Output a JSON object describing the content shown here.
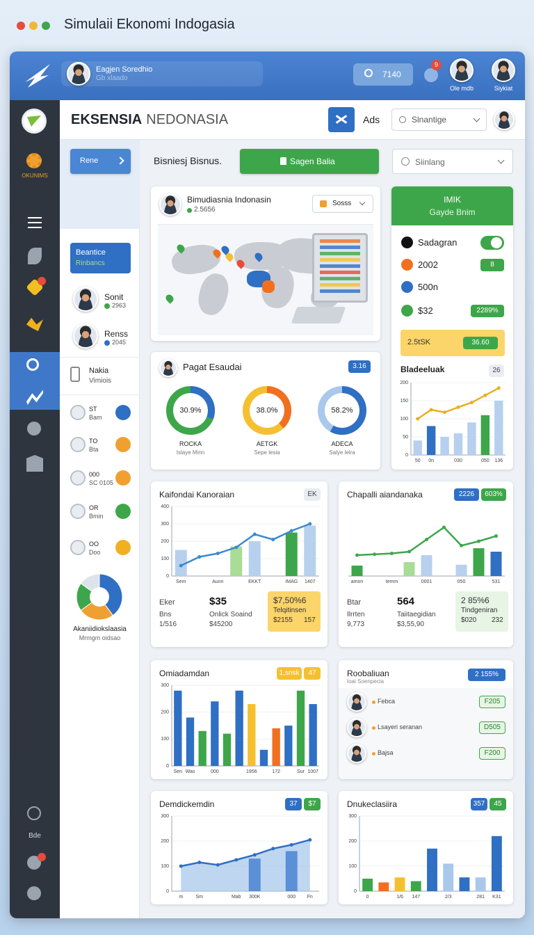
{
  "window": {
    "title": "Simulaii Ekonomi Indogasia"
  },
  "topbar": {
    "user": "Eagjen Soredhio",
    "user_sub": "Gb xlaado",
    "search": "7140",
    "notifications": "9",
    "users": [
      "Ole mdb",
      "Siykiat"
    ]
  },
  "sidebar": {
    "logo_label": "OKUNIMS",
    "bottom_label": "Bde"
  },
  "header": {
    "brand": "EKSENSIA",
    "brand_light": "NEDONASIA",
    "ads": "Ads",
    "search": "Slnantige"
  },
  "left_panel": {
    "button": "Rene",
    "active": {
      "title": "Beantice",
      "sub": "Rinbancs"
    },
    "people": [
      {
        "name": "Sonit",
        "value": "2963",
        "color": "#3ea64a"
      },
      {
        "name": "Renss",
        "value": "2045",
        "color": "#2f6fc4"
      }
    ],
    "item": {
      "name": "Nakia",
      "sub": "Vimiois"
    },
    "list": [
      {
        "title": "ST",
        "sub": "Bam",
        "color": "#2f6fc4"
      },
      {
        "title": "TO",
        "sub": "Bta",
        "color": "#f0a030"
      },
      {
        "title": "000",
        "sub": "SC 0105",
        "color": "#f0a030"
      },
      {
        "title": "OR",
        "sub": "Bmin",
        "color": "#3ea64a"
      },
      {
        "title": "OO",
        "sub": "Doo",
        "color": "#f0b020"
      }
    ],
    "pie": {
      "title": "Akaniidiokslaasia",
      "sub": "Mrmgm oidsao",
      "values": [
        40,
        25,
        20,
        15
      ],
      "colors": [
        "#2f6fc4",
        "#f0a030",
        "#3ea64a",
        "#dde3ea"
      ]
    }
  },
  "toolbar": {
    "label": "Bisniesj Bisnus.",
    "button": "Sagen Balia",
    "select": "Siinlang"
  },
  "map_card": {
    "title": "Bimudiasnia Indonasin",
    "sub": "2.5656",
    "button": "Sosss"
  },
  "status_card": {
    "title": "IMIK",
    "sub": "Gayde Bnim",
    "items": [
      {
        "label": "Sadagran",
        "color": "#111111"
      },
      {
        "label": "2002",
        "color": "#f07020",
        "badge": "8"
      },
      {
        "label": "500n",
        "color": "#2f6fc4"
      },
      {
        "label": "$32",
        "color": "#3ea64a",
        "badge": "2289%"
      }
    ],
    "highlight": {
      "text": "2.5tSK",
      "badge": "36.60"
    },
    "chart": {
      "title": "Bladeeluak",
      "badges": [
        "26"
      ],
      "ylim": [
        0,
        200
      ],
      "yticks": [
        0,
        50,
        100,
        150,
        200
      ],
      "categories": [
        "50",
        "0n",
        null,
        "030",
        null,
        "050",
        "136"
      ],
      "bars": {
        "values": [
          40,
          80,
          50,
          60,
          90,
          110,
          150
        ],
        "colors": [
          "#b7d0ee",
          "#2f6fc4",
          "#b7d0ee",
          "#b7d0ee",
          "#b7d0ee",
          "#3ea64a",
          "#b7d0ee"
        ]
      },
      "line": {
        "values": [
          100,
          125,
          118,
          132,
          145,
          165,
          185
        ],
        "color": "#e8b020"
      }
    }
  },
  "donut_card": {
    "title": "Pagat Esaudai",
    "badge": "3.16",
    "donuts": [
      {
        "value": 30.9,
        "label": "30.9%",
        "name": "ROCKA",
        "sub": "Islaye Minn",
        "colors": [
          "#2f6fc4",
          "#3ea64a"
        ]
      },
      {
        "value": 38.0,
        "label": "38.0%",
        "name": "AETGK",
        "sub": "Sepe lesia",
        "colors": [
          "#f07020",
          "#f5c030"
        ]
      },
      {
        "value": 58.2,
        "label": "58.2%",
        "name": "ADECA",
        "sub": "Salye lelra",
        "colors": [
          "#2f6fc4",
          "#a9c8ec"
        ]
      }
    ]
  },
  "charts": [
    {
      "title": "Kaifondai Kanoraian",
      "badges": [
        "EK"
      ],
      "ylim": [
        0,
        400
      ],
      "yticks": [
        0,
        100,
        200,
        300,
        400
      ],
      "categories": [
        "Sem",
        null,
        "Aunn",
        null,
        "EKKT",
        null,
        "IMAG",
        "1407"
      ],
      "bars": {
        "values": [
          150,
          null,
          null,
          170,
          200,
          null,
          250,
          290
        ],
        "colors": [
          "#b7d0ee",
          "#b7d0ee",
          "#b7d0ee",
          "#a9dc96",
          "#b7d0ee",
          "#b7d0ee",
          "#3ea64a",
          "#b7d0ee"
        ]
      },
      "line": {
        "values": [
          60,
          110,
          130,
          165,
          240,
          210,
          260,
          300
        ],
        "color": "#3a8ad0"
      },
      "stats": [
        [
          "Eker",
          "$35"
        ],
        [
          "Bns",
          "Onlick Soaind"
        ],
        [
          "1/516",
          "$45200"
        ]
      ],
      "highlight": {
        "rows": [
          [
            "$7,50%6"
          ],
          [
            "Telqitinsen"
          ],
          [
            "$2155",
            "157"
          ]
        ],
        "color": "#fbd46a"
      }
    },
    {
      "title": "Chapalli aiandanaka",
      "badges": [
        "2226",
        "603%"
      ],
      "ylim": [
        0,
        400
      ],
      "categories": [
        "amon",
        null,
        "temm",
        null,
        "0001",
        null,
        "050",
        null,
        "531"
      ],
      "bars": {
        "values": [
          60,
          null,
          null,
          80,
          120,
          null,
          65,
          160,
          140
        ],
        "colors": [
          "#3ea64a",
          "#3ea64a",
          "#3ea64a",
          "#a9dc96",
          "#b7d0ee",
          "#b7d0ee",
          "#b7d0ee",
          "#3ea64a",
          "#2f6fc4"
        ]
      },
      "line": {
        "values": [
          120,
          125,
          130,
          140,
          210,
          280,
          175,
          200,
          230
        ],
        "color": "#3ea64a"
      },
      "stats": [
        [
          "Btar",
          "564"
        ],
        [
          "Ilrrten",
          "Taiitaegidian"
        ],
        [
          "9,773",
          "$3,55,90"
        ]
      ],
      "highlight": {
        "rows": [
          [
            "2 85%6"
          ],
          [
            "Tindgeniran"
          ],
          [
            "$020",
            "232"
          ]
        ],
        "color": "#e6f5e4"
      }
    },
    {
      "title": "Omiadamdan",
      "badges": [
        "1,snsk",
        "47"
      ],
      "ylim": [
        0,
        300
      ],
      "yticks": [
        0,
        100,
        200,
        300
      ],
      "categories": [
        "Sen",
        "Was",
        null,
        "000",
        null,
        null,
        "1956",
        null,
        "172",
        null,
        "Sur",
        "1007"
      ],
      "bars": {
        "values": [
          280,
          180,
          130,
          240,
          120,
          280,
          230,
          60,
          140,
          150,
          280,
          230
        ],
        "colors": [
          "#2f6fc4",
          "#2f6fc4",
          "#3ea64a",
          "#2f6fc4",
          "#3ea64a",
          "#2f6fc4",
          "#f5c030",
          "#2f6fc4",
          "#f07020",
          "#2f6fc4",
          "#3ea64a",
          "#2f6fc4"
        ]
      }
    },
    {
      "title": "Demdickemdin",
      "badges": [
        "37",
        "$7"
      ],
      "ylim": [
        0,
        300
      ],
      "yticks": [
        0,
        100,
        200,
        300
      ],
      "categories": [
        "m",
        "Sm",
        null,
        "Mab",
        "300K",
        null,
        "000",
        "Fn"
      ],
      "bars": {
        "values": [
          null,
          null,
          null,
          null,
          130,
          null,
          160,
          null
        ],
        "colors": [
          "#5b8fd6",
          "#5b8fd6",
          "#5b8fd6",
          "#5b8fd6",
          "#5b8fd6",
          "#5b8fd6",
          "#5b8fd6",
          "#5b8fd6"
        ]
      },
      "line": {
        "values": [
          100,
          115,
          105,
          125,
          145,
          170,
          185,
          205
        ],
        "color": "#2f6fc4",
        "area": "#a9c8ec"
      }
    },
    {
      "title": "Dnukeclasiira",
      "badges": [
        "357",
        "45"
      ],
      "ylim": [
        0,
        300
      ],
      "yticks": [
        0,
        100,
        200,
        300
      ],
      "categories": [
        "0",
        null,
        "1/6",
        "147",
        null,
        "2/3",
        null,
        "281",
        "K31"
      ],
      "bars": {
        "values": [
          50,
          35,
          55,
          40,
          170,
          110,
          55,
          55,
          220
        ],
        "colors": [
          "#3ea64a",
          "#f07020",
          "#f5c030",
          "#3ea64a",
          "#2f6fc4",
          "#a9c8ec",
          "#2f6fc4",
          "#a9c8ec",
          "#2f6fc4"
        ]
      }
    }
  ],
  "list_card": {
    "title": "Roobaliuan",
    "sub": "Ioai Soenpecia",
    "badge": "2 155%",
    "items": [
      {
        "name": "Febca",
        "badge": "F205"
      },
      {
        "name": "Lsayeri seranan",
        "badge": "D505"
      },
      {
        "name": "Bajsa",
        "badge": "F200"
      }
    ]
  }
}
